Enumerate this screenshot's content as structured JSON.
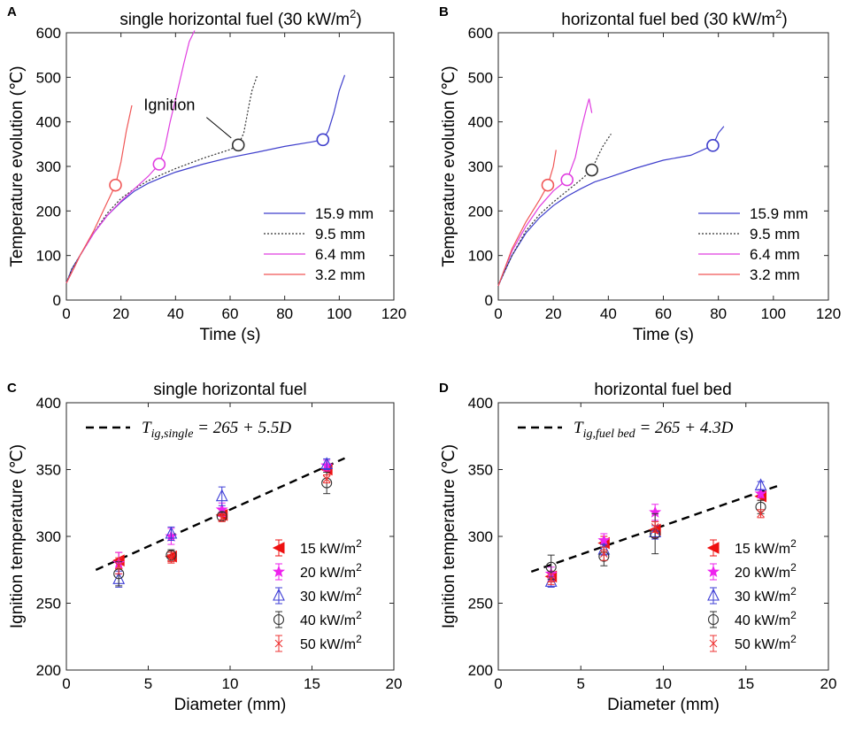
{
  "figure": {
    "panels": [
      "A",
      "B",
      "C",
      "D"
    ],
    "ignition_label": "Ignition"
  },
  "chart_data": [
    {
      "id": "A",
      "type": "line",
      "panel_label": "A",
      "title_pre": "single horizontal fuel (30 kW/m",
      "title_sup": "2",
      "title_post": ")",
      "xlabel": "Time (s)",
      "ylabel": "Temperature evolution (℃)",
      "xlim": [
        0,
        120
      ],
      "ylim": [
        0,
        600
      ],
      "xticks": [
        0,
        20,
        40,
        60,
        80,
        100,
        120
      ],
      "yticks": [
        0,
        100,
        200,
        300,
        400,
        500,
        600
      ],
      "legend_position": "lower-right",
      "annotation": {
        "text": "Ignition",
        "arrow_to_series": "9.5 mm"
      },
      "series": [
        {
          "name": "15.9 mm",
          "color": "#3f3fcc",
          "dash": "solid",
          "points": [
            [
              0,
              38
            ],
            [
              2,
              70
            ],
            [
              5,
              100
            ],
            [
              10,
              150
            ],
            [
              15,
              190
            ],
            [
              20,
              220
            ],
            [
              25,
              245
            ],
            [
              30,
              262
            ],
            [
              35,
              275
            ],
            [
              40,
              287
            ],
            [
              50,
              305
            ],
            [
              60,
              320
            ],
            [
              70,
              332
            ],
            [
              80,
              345
            ],
            [
              90,
              355
            ],
            [
              94,
              360
            ],
            [
              96,
              380
            ],
            [
              98,
              420
            ],
            [
              100,
              470
            ],
            [
              102,
              505
            ]
          ],
          "ignition": [
            94,
            360
          ]
        },
        {
          "name": "9.5 mm",
          "color": "#333333",
          "dash": "dotted",
          "points": [
            [
              0,
              38
            ],
            [
              2,
              70
            ],
            [
              5,
              100
            ],
            [
              10,
              150
            ],
            [
              15,
              195
            ],
            [
              20,
              228
            ],
            [
              25,
              250
            ],
            [
              30,
              268
            ],
            [
              35,
              282
            ],
            [
              40,
              295
            ],
            [
              50,
              318
            ],
            [
              60,
              338
            ],
            [
              63,
              348
            ],
            [
              65,
              375
            ],
            [
              67,
              440
            ],
            [
              68,
              470
            ],
            [
              70,
              505
            ]
          ],
          "ignition": [
            63,
            348
          ]
        },
        {
          "name": "6.4 mm",
          "color": "#e03ee0",
          "dash": "solid",
          "points": [
            [
              0,
              38
            ],
            [
              3,
              75
            ],
            [
              5,
              100
            ],
            [
              10,
              150
            ],
            [
              15,
              190
            ],
            [
              20,
              222
            ],
            [
              25,
              250
            ],
            [
              30,
              278
            ],
            [
              34,
              305
            ],
            [
              36,
              340
            ],
            [
              38,
              400
            ],
            [
              40,
              450
            ],
            [
              43,
              530
            ],
            [
              45,
              580
            ],
            [
              47,
              605
            ]
          ],
          "ignition": [
            34,
            305
          ]
        },
        {
          "name": "3.2 mm",
          "color": "#f05656",
          "dash": "solid",
          "points": [
            [
              0,
              38
            ],
            [
              3,
              75
            ],
            [
              5,
              100
            ],
            [
              10,
              155
            ],
            [
              15,
              220
            ],
            [
              18,
              258
            ],
            [
              20,
              310
            ],
            [
              22,
              380
            ],
            [
              24,
              437
            ]
          ],
          "ignition": [
            18,
            258
          ]
        }
      ]
    },
    {
      "id": "B",
      "type": "line",
      "panel_label": "B",
      "title_pre": "horizontal fuel bed (30 kW/m",
      "title_sup": "2",
      "title_post": ")",
      "xlabel": "Time (s)",
      "ylabel": "Temperature evolution (℃)",
      "xlim": [
        0,
        120
      ],
      "ylim": [
        0,
        600
      ],
      "xticks": [
        0,
        20,
        40,
        60,
        80,
        100,
        120
      ],
      "yticks": [
        0,
        100,
        200,
        300,
        400,
        500,
        600
      ],
      "legend_position": "lower-right",
      "series": [
        {
          "name": "15.9 mm",
          "color": "#3f3fcc",
          "dash": "solid",
          "points": [
            [
              0,
              32
            ],
            [
              2,
              60
            ],
            [
              5,
              100
            ],
            [
              10,
              150
            ],
            [
              15,
              185
            ],
            [
              20,
              212
            ],
            [
              25,
              233
            ],
            [
              30,
              250
            ],
            [
              35,
              265
            ],
            [
              40,
              275
            ],
            [
              50,
              296
            ],
            [
              60,
              314
            ],
            [
              70,
              325
            ],
            [
              78,
              347
            ],
            [
              80,
              375
            ],
            [
              82,
              390
            ]
          ],
          "ignition": [
            78,
            347
          ]
        },
        {
          "name": "9.5 mm",
          "color": "#333333",
          "dash": "dotted",
          "points": [
            [
              0,
              32
            ],
            [
              2,
              60
            ],
            [
              5,
              100
            ],
            [
              10,
              155
            ],
            [
              15,
              192
            ],
            [
              20,
              220
            ],
            [
              25,
              245
            ],
            [
              30,
              270
            ],
            [
              34,
              292
            ],
            [
              36,
              320
            ],
            [
              38,
              345
            ],
            [
              41,
              373
            ]
          ],
          "ignition": [
            34,
            292
          ]
        },
        {
          "name": "6.4 mm",
          "color": "#e03ee0",
          "dash": "solid",
          "points": [
            [
              0,
              32
            ],
            [
              2,
              65
            ],
            [
              5,
              110
            ],
            [
              10,
              165
            ],
            [
              15,
              210
            ],
            [
              20,
              245
            ],
            [
              25,
              270
            ],
            [
              28,
              320
            ],
            [
              30,
              380
            ],
            [
              32,
              430
            ],
            [
              33,
              452
            ],
            [
              34,
              420
            ]
          ],
          "ignition": [
            25,
            270
          ]
        },
        {
          "name": "3.2 mm",
          "color": "#f05656",
          "dash": "solid",
          "points": [
            [
              0,
              32
            ],
            [
              2,
              65
            ],
            [
              5,
              115
            ],
            [
              10,
              175
            ],
            [
              15,
              225
            ],
            [
              18,
              258
            ],
            [
              20,
              300
            ],
            [
              21,
              337
            ]
          ],
          "ignition": [
            18,
            258
          ]
        }
      ]
    },
    {
      "id": "C",
      "type": "scatter",
      "panel_label": "C",
      "title": "single horizontal fuel",
      "xlabel": "Diameter (mm)",
      "ylabel": "Ignition temperature (℃)",
      "xlim": [
        0,
        20
      ],
      "ylim": [
        200,
        400
      ],
      "xticks": [
        0,
        5,
        10,
        15,
        20
      ],
      "yticks": [
        200,
        250,
        300,
        350,
        400
      ],
      "legend_position": "lower-right",
      "fit": {
        "prefix": "T",
        "sub": "ig,single",
        "rhs": " = 265 + 5.5D",
        "intercept": 265,
        "slope": 5.5,
        "x_range": [
          1.8,
          17
        ]
      },
      "series": [
        {
          "name": "15 kW/m",
          "sup": "2",
          "marker": "triangle-left",
          "color": "#ee1111",
          "x": [
            3.2,
            6.4,
            9.5,
            15.9
          ],
          "y": [
            282,
            285,
            316,
            350
          ],
          "err": [
            6,
            4,
            4,
            4
          ]
        },
        {
          "name": "20 kW/m",
          "sup": "2",
          "marker": "star",
          "color": "#ee22ee",
          "x": [
            3.2,
            6.4,
            9.5,
            15.9
          ],
          "y": [
            280,
            300,
            320,
            353
          ],
          "err": [
            8,
            6,
            5,
            4
          ]
        },
        {
          "name": "30 kW/m",
          "sup": "2",
          "marker": "triangle-up",
          "color": "#3d3dd6",
          "x": [
            3.2,
            6.4,
            9.5,
            15.9
          ],
          "y": [
            268,
            302,
            330,
            354
          ],
          "err": [
            6,
            5,
            7,
            4
          ]
        },
        {
          "name": "40 kW/m",
          "sup": "2",
          "marker": "circle",
          "color": "#333333",
          "x": [
            3.2,
            6.4,
            9.5,
            15.9
          ],
          "y": [
            272,
            286,
            315,
            340
          ],
          "err": [
            9,
            4,
            3,
            8
          ]
        },
        {
          "name": "50 kW/m",
          "sup": "2",
          "marker": "x",
          "color": "#ee3333",
          "x": [
            3.2,
            6.4,
            9.5,
            15.9
          ],
          "y": [
            278,
            284,
            314,
            343
          ],
          "err": [
            6,
            4,
            3,
            3
          ]
        }
      ]
    },
    {
      "id": "D",
      "type": "scatter",
      "panel_label": "D",
      "title": "horizontal fuel bed",
      "xlabel": "Diameter (mm)",
      "ylabel": "Ignition temperature (℃)",
      "xlim": [
        0,
        20
      ],
      "ylim": [
        200,
        400
      ],
      "xticks": [
        0,
        5,
        10,
        15,
        20
      ],
      "yticks": [
        200,
        250,
        300,
        350,
        400
      ],
      "legend_position": "lower-right",
      "fit": {
        "prefix": "T",
        "sub": "ig,fuel bed",
        "rhs": " = 265 + 4.3D",
        "intercept": 265,
        "slope": 4.3,
        "x_range": [
          2,
          17
        ]
      },
      "series": [
        {
          "name": "15 kW/m",
          "sup": "2",
          "marker": "triangle-left",
          "color": "#ee1111",
          "x": [
            3.2,
            6.4,
            9.5,
            15.9
          ],
          "y": [
            270,
            295,
            305,
            330
          ],
          "err": [
            4,
            5,
            6,
            3
          ]
        },
        {
          "name": "20 kW/m",
          "sup": "2",
          "marker": "star",
          "color": "#ee22ee",
          "x": [
            3.2,
            6.4,
            9.5,
            15.9
          ],
          "y": [
            272,
            297,
            318,
            332
          ],
          "err": [
            5,
            5,
            6,
            3
          ]
        },
        {
          "name": "30 kW/m",
          "sup": "2",
          "marker": "triangle-up",
          "color": "#3d3dd6",
          "x": [
            3.2,
            6.4,
            9.5,
            15.9
          ],
          "y": [
            266,
            290,
            303,
            338
          ],
          "err": [
            4,
            4,
            5,
            3
          ]
        },
        {
          "name": "40 kW/m",
          "sup": "2",
          "marker": "circle",
          "color": "#333333",
          "x": [
            3.2,
            6.4,
            9.5,
            15.9
          ],
          "y": [
            277,
            285,
            302,
            322
          ],
          "err": [
            9,
            7,
            15,
            5
          ]
        },
        {
          "name": "50 kW/m",
          "sup": "2",
          "marker": "x",
          "color": "#ee3333",
          "x": [
            3.2,
            6.4,
            9.5,
            15.9
          ],
          "y": [
            268,
            287,
            307,
            317
          ],
          "err": [
            4,
            5,
            4,
            3
          ]
        }
      ]
    }
  ]
}
